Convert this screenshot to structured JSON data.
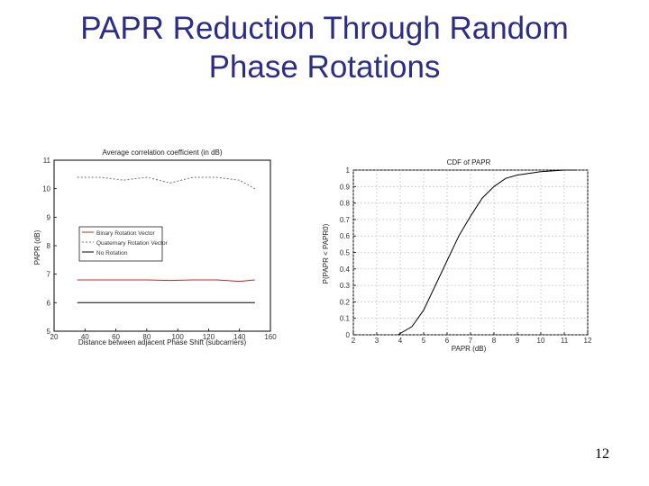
{
  "slide": {
    "title": "PAPR Reduction Through Random\nPhase Rotations",
    "page_number": "12"
  },
  "colors": {
    "title": "#2b2d86",
    "series_red": "#c0281e",
    "series_black": "#000000",
    "series_gray": "#707070"
  },
  "chart_data": [
    {
      "type": "line",
      "title": "Average correlation coefficient (in dB)",
      "xlabel": "Distance between adjacent Phase Shift (subcarriers)",
      "ylabel": "PAPR (dB)",
      "xlim": [
        20,
        160
      ],
      "ylim": [
        5,
        11
      ],
      "x_ticks": [
        "20",
        "40",
        "60",
        "80",
        "100",
        "120",
        "140",
        "160"
      ],
      "y_ticks": [
        "5",
        "6",
        "7",
        "8",
        "9",
        "10",
        "11"
      ],
      "grid": false,
      "legend_position": "left",
      "series": [
        {
          "name": "Binary Rotation Vector",
          "x": [
            35,
            50,
            65,
            80,
            95,
            110,
            125,
            140,
            150
          ],
          "y": [
            6.8,
            6.8,
            6.8,
            6.8,
            6.78,
            6.8,
            6.8,
            6.75,
            6.8
          ]
        },
        {
          "name": "Quaternary Rotation Vector",
          "x": [
            35,
            50,
            65,
            80,
            95,
            110,
            125,
            140,
            150
          ],
          "y": [
            10.4,
            10.4,
            10.3,
            10.4,
            10.2,
            10.4,
            10.4,
            10.3,
            10.0
          ]
        },
        {
          "name": "No Rotation",
          "x": [
            35,
            50,
            65,
            80,
            95,
            110,
            125,
            140,
            150
          ],
          "y": [
            6.0,
            6.0,
            6.0,
            6.0,
            6.0,
            6.0,
            6.0,
            6.0,
            6.0
          ]
        }
      ]
    },
    {
      "type": "line",
      "title": "CDF of PAPR",
      "xlabel": "PAPR (dB)",
      "ylabel": "P(PAPR < PAPR0)",
      "xlim": [
        2,
        12
      ],
      "ylim": [
        0,
        1
      ],
      "x_ticks": [
        "2",
        "3",
        "4",
        "5",
        "6",
        "7",
        "8",
        "9",
        "10",
        "11",
        "12"
      ],
      "y_ticks": [
        "0",
        "0.1",
        "0.2",
        "0.3",
        "0.4",
        "0.5",
        "0.6",
        "0.7",
        "0.8",
        "0.9",
        "1"
      ],
      "grid": true,
      "series": [
        {
          "name": "CDF",
          "x": [
            3.9,
            4.5,
            5.0,
            5.5,
            6.0,
            6.5,
            7.0,
            7.5,
            8.0,
            8.5,
            9.0,
            10.0,
            11.0,
            11.5
          ],
          "y": [
            0.0,
            0.05,
            0.15,
            0.3,
            0.45,
            0.6,
            0.72,
            0.83,
            0.9,
            0.95,
            0.97,
            0.99,
            1.0,
            1.0
          ]
        }
      ]
    }
  ]
}
